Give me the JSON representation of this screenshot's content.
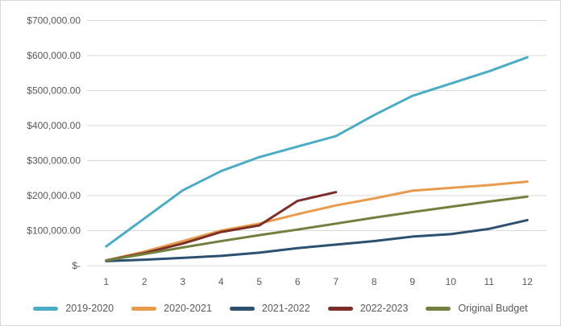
{
  "chart_data": {
    "type": "line",
    "title": "",
    "xlabel": "",
    "ylabel": "",
    "categories": [
      "1",
      "2",
      "3",
      "4",
      "5",
      "6",
      "7",
      "8",
      "9",
      "10",
      "11",
      "12"
    ],
    "series": [
      {
        "name": "2019-2020",
        "color": "#4AACC5",
        "values": [
          55000,
          135000,
          215000,
          270000,
          310000,
          340000,
          370000,
          430000,
          485000,
          520000,
          555000,
          595000
        ]
      },
      {
        "name": "2020-2021",
        "color": "#E89B4D",
        "values": [
          15000,
          40000,
          70000,
          100000,
          120000,
          147000,
          172000,
          192000,
          214000,
          222000,
          230000,
          240000
        ]
      },
      {
        "name": "2021-2022",
        "color": "#2B5070",
        "values": [
          13000,
          17000,
          22000,
          28000,
          37000,
          50000,
          60000,
          70000,
          83000,
          90000,
          105000,
          130000
        ]
      },
      {
        "name": "2022-2023",
        "color": "#7C2F28",
        "values": [
          15000,
          36000,
          63000,
          96000,
          115000,
          185000,
          210000
        ]
      },
      {
        "name": "Original Budget",
        "color": "#71803E",
        "values": [
          15000,
          33000,
          52000,
          70000,
          87000,
          103000,
          120000,
          137000,
          153000,
          168000,
          183000,
          197000
        ]
      }
    ],
    "ylim": [
      0,
      700000
    ],
    "ytick_step": 100000,
    "ytick_labels": [
      "$-",
      "$100,000.00",
      "$200,000.00",
      "$300,000.00",
      "$400,000.00",
      "$500,000.00",
      "$600,000.00",
      "$700,000.00"
    ],
    "grid": true,
    "legend_position": "bottom",
    "line_width": 3
  },
  "style": {
    "background": "#FFFFFF",
    "border_color": "#D9D9D9",
    "gridline_color": "#D9D9D9",
    "axis_label_color": "#595959"
  }
}
